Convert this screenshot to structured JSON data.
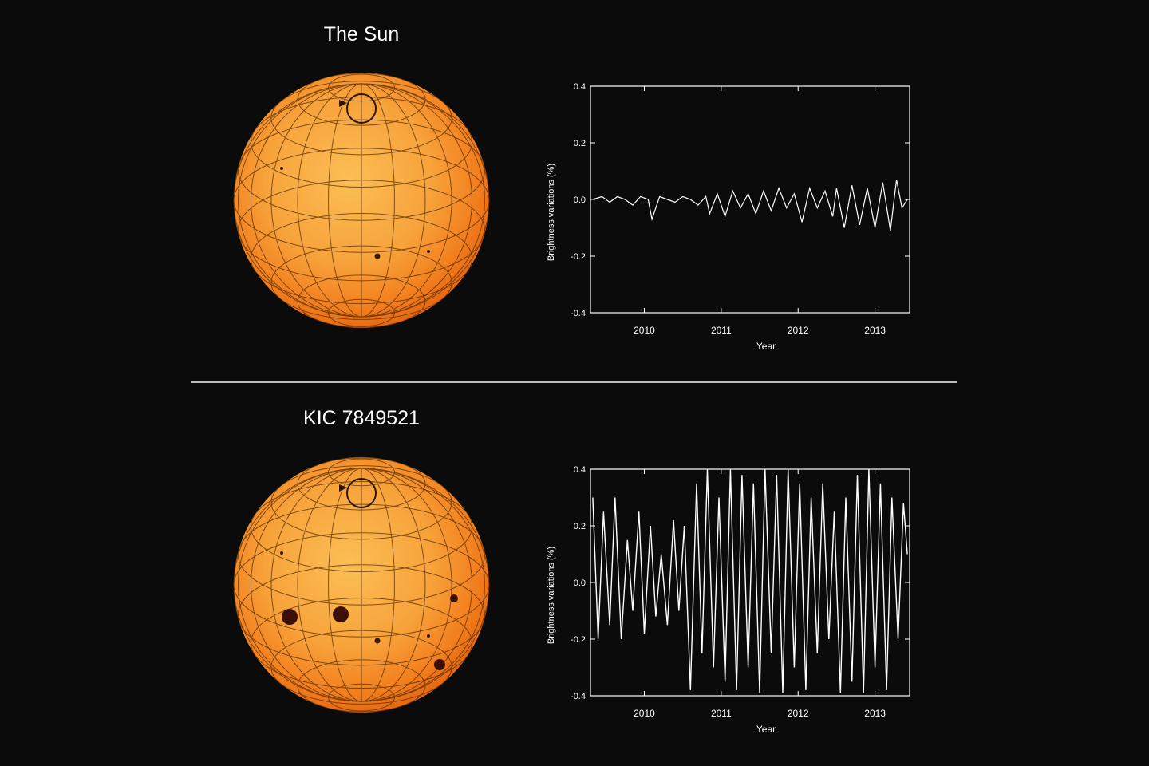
{
  "chart_data": [
    {
      "type": "line",
      "title": "The Sun",
      "xlabel": "Year",
      "ylabel": "Brightness variations (%)",
      "xlim": [
        2009.3,
        2013.45
      ],
      "ylim": [
        -0.4,
        0.4
      ],
      "x_ticks": [
        "2010",
        "2011",
        "2012",
        "2013"
      ],
      "y_ticks": [
        "0.4",
        "0.2",
        "0.0",
        "-0.2",
        "-0.4"
      ],
      "grid": false,
      "series": [
        {
          "x": [
            2009.33,
            2009.45,
            2009.55,
            2009.65,
            2009.75,
            2009.85,
            2009.95,
            2010.05,
            2010.1,
            2010.2,
            2010.3,
            2010.4,
            2010.5,
            2010.6,
            2010.7,
            2010.8,
            2010.85,
            2010.95,
            2011.05,
            2011.15,
            2011.25,
            2011.35,
            2011.45,
            2011.55,
            2011.65,
            2011.75,
            2011.85,
            2011.95,
            2012.05,
            2012.15,
            2012.25,
            2012.35,
            2012.45,
            2012.5,
            2012.6,
            2012.7,
            2012.8,
            2012.9,
            2013.0,
            2013.1,
            2013.2,
            2013.28,
            2013.35,
            2013.42
          ],
          "y": [
            0.0,
            0.01,
            -0.01,
            0.01,
            0.0,
            -0.02,
            0.01,
            0.0,
            -0.07,
            0.01,
            0.0,
            -0.01,
            0.01,
            0.0,
            -0.02,
            0.01,
            -0.05,
            0.02,
            -0.06,
            0.03,
            -0.03,
            0.02,
            -0.05,
            0.03,
            -0.04,
            0.04,
            -0.03,
            0.02,
            -0.08,
            0.04,
            -0.03,
            0.03,
            -0.06,
            0.04,
            -0.1,
            0.05,
            -0.09,
            0.04,
            -0.1,
            0.06,
            -0.11,
            0.07,
            -0.03,
            0.0
          ]
        }
      ]
    },
    {
      "type": "line",
      "title": "KIC 7849521",
      "xlabel": "Year",
      "ylabel": "Brightness variations (%)",
      "xlim": [
        2009.3,
        2013.45
      ],
      "ylim": [
        -0.4,
        0.4
      ],
      "x_ticks": [
        "2010",
        "2011",
        "2012",
        "2013"
      ],
      "y_ticks": [
        "0.4",
        "0.2",
        "0.0",
        "-0.2",
        "-0.4"
      ],
      "grid": false,
      "series": [
        {
          "x": [
            2009.33,
            2009.4,
            2009.47,
            2009.55,
            2009.62,
            2009.7,
            2009.78,
            2009.85,
            2009.93,
            2010.0,
            2010.08,
            2010.15,
            2010.22,
            2010.3,
            2010.38,
            2010.45,
            2010.52,
            2010.6,
            2010.68,
            2010.75,
            2010.82,
            2010.9,
            2010.97,
            2011.05,
            2011.12,
            2011.2,
            2011.27,
            2011.35,
            2011.42,
            2011.5,
            2011.57,
            2011.65,
            2011.72,
            2011.8,
            2011.87,
            2011.95,
            2012.02,
            2012.1,
            2012.17,
            2012.25,
            2012.32,
            2012.4,
            2012.47,
            2012.55,
            2012.62,
            2012.7,
            2012.77,
            2012.85,
            2012.92,
            2013.0,
            2013.07,
            2013.15,
            2013.22,
            2013.3,
            2013.37,
            2013.42
          ],
          "y": [
            0.3,
            -0.2,
            0.25,
            -0.15,
            0.3,
            -0.2,
            0.15,
            -0.1,
            0.25,
            -0.18,
            0.2,
            -0.12,
            0.1,
            -0.15,
            0.22,
            -0.1,
            0.2,
            -0.38,
            0.35,
            -0.25,
            0.4,
            -0.3,
            0.3,
            -0.35,
            0.4,
            -0.38,
            0.38,
            -0.3,
            0.35,
            -0.39,
            0.4,
            -0.25,
            0.38,
            -0.39,
            0.4,
            -0.3,
            0.35,
            -0.38,
            0.3,
            -0.25,
            0.35,
            -0.2,
            0.25,
            -0.39,
            0.3,
            -0.35,
            0.38,
            -0.39,
            0.4,
            -0.3,
            0.35,
            -0.38,
            0.3,
            -0.2,
            0.28,
            0.1
          ]
        }
      ]
    }
  ]
}
